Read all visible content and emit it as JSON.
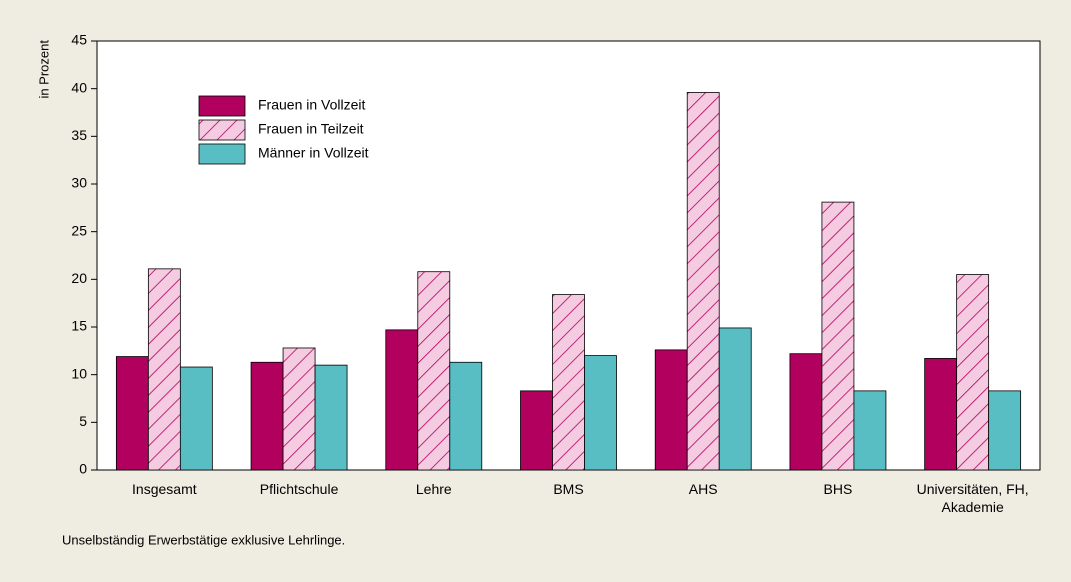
{
  "chart_data": {
    "type": "bar",
    "ylabel": "in Prozent",
    "note": "Unselbständig Erwerbstätige exklusive Lehrlinge.",
    "categories": [
      "Insgesamt",
      "Pflichtschule",
      "Lehre",
      "BMS",
      "AHS",
      "BHS",
      "Universitäten, FH, Akademie"
    ],
    "series": [
      {
        "name": "Frauen in Vollzeit",
        "color": "#b1005e",
        "values": [
          11.9,
          11.3,
          14.7,
          8.3,
          12.6,
          12.2,
          11.7
        ]
      },
      {
        "name": "Frauen in Teilzeit",
        "color": "#f5cbe1",
        "hatch": "#b1005e",
        "values": [
          21.1,
          12.8,
          20.8,
          18.4,
          39.6,
          28.1,
          20.5
        ]
      },
      {
        "name": "Männer in Vollzeit",
        "color": "#59bec4",
        "values": [
          10.8,
          11.0,
          11.3,
          12.0,
          14.9,
          8.3,
          8.3
        ]
      }
    ],
    "ylim": [
      0,
      45
    ],
    "yticks": [
      0,
      5,
      10,
      15,
      20,
      25,
      30,
      35,
      40,
      45
    ],
    "grid": false
  }
}
